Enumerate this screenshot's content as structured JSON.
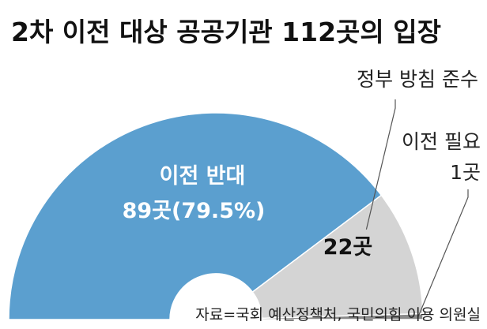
{
  "chart_data": {
    "type": "pie",
    "title": "2차 이전 대상 공공기관 112곳의 입장",
    "total": 112,
    "slices": [
      {
        "name": "이전 반대",
        "value": 89,
        "value_label": "89곳",
        "percent_label": "(79.5%)",
        "color": "#5b9fcf"
      },
      {
        "name": "정부 방침 준수",
        "value": 22,
        "value_label": "22곳",
        "color": "#d4d4d4"
      },
      {
        "name": "이전 필요",
        "value": 1,
        "value_label": "1곳",
        "color": "#8a8a8a"
      }
    ],
    "source": "자료=국회 예산정책처, 국민의힘 이용 의원실"
  }
}
